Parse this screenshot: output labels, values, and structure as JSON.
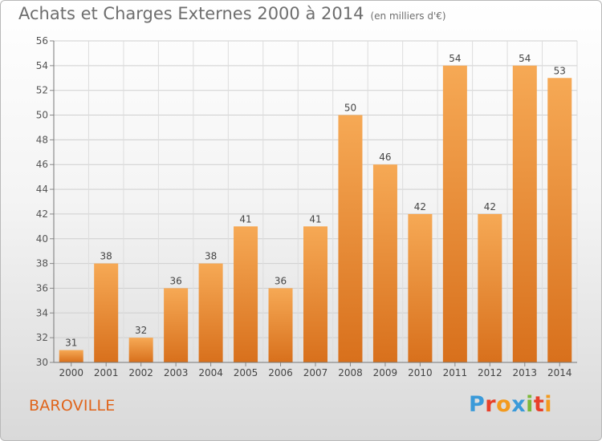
{
  "header": {
    "title": "Achats et Charges Externes 2000 à 2014",
    "unit": "(en milliers d'€)"
  },
  "commune": "BAROVILLE",
  "logo": {
    "text": "Proxiti",
    "letters": [
      {
        "ch": "P",
        "color": "#3a9ad9"
      },
      {
        "ch": "r",
        "color": "#e8402a"
      },
      {
        "ch": "o",
        "color": "#f39a1e"
      },
      {
        "ch": "x",
        "color": "#3a9ad9"
      },
      {
        "ch": "i",
        "color": "#7cb83a"
      },
      {
        "ch": "t",
        "color": "#e8402a"
      },
      {
        "ch": "i",
        "color": "#f39a1e"
      }
    ]
  },
  "chart_data": {
    "type": "bar",
    "categories": [
      "2000",
      "2001",
      "2002",
      "2003",
      "2004",
      "2005",
      "2006",
      "2007",
      "2008",
      "2009",
      "2010",
      "2011",
      "2012",
      "2013",
      "2014"
    ],
    "values": [
      31,
      38,
      32,
      36,
      38,
      41,
      36,
      41,
      50,
      46,
      42,
      54,
      42,
      54,
      53
    ],
    "ylim": [
      30,
      56
    ],
    "yticks": [
      30,
      32,
      34,
      36,
      38,
      40,
      42,
      44,
      46,
      48,
      50,
      52,
      54,
      56
    ],
    "grid": true,
    "bar_color": "#f0923a"
  }
}
